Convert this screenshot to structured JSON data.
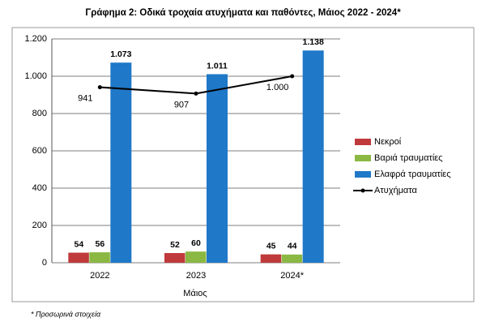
{
  "chart_data": {
    "type": "bar",
    "title": "Γράφημα 2: Οδικά τροχαία ατυχήματα και παθόντες, Μάιος 2022 - 2024*",
    "x_label": "Μάιος",
    "footnote": "* Προσωρινά στοιχεία",
    "categories": [
      "2022",
      "2023",
      "2024*"
    ],
    "series": [
      {
        "name": "Νεκροί",
        "color": "#c0393b",
        "values": [
          54,
          52,
          45
        ]
      },
      {
        "name": "Βαριά τραυματίες",
        "color": "#8ab843",
        "values": [
          56,
          60,
          44
        ]
      },
      {
        "name": "Ελαφρά τραυματίες",
        "color": "#1f78c8",
        "values": [
          1073,
          1011,
          1138
        ],
        "value_labels": [
          "1.073",
          "1.011",
          "1.138"
        ]
      },
      {
        "name": "Ατυχήματα",
        "color": "#000000",
        "type": "line",
        "values": [
          941,
          907,
          1000
        ],
        "value_labels": [
          "941",
          "907",
          "1.000"
        ]
      }
    ],
    "ylim": [
      0,
      1200
    ],
    "yticks": [
      0,
      200,
      400,
      600,
      800,
      {
        "value": 1000,
        "label": "1.000"
      },
      {
        "value": 1200,
        "label": "1.200"
      }
    ],
    "grid": true,
    "legend": "right"
  }
}
